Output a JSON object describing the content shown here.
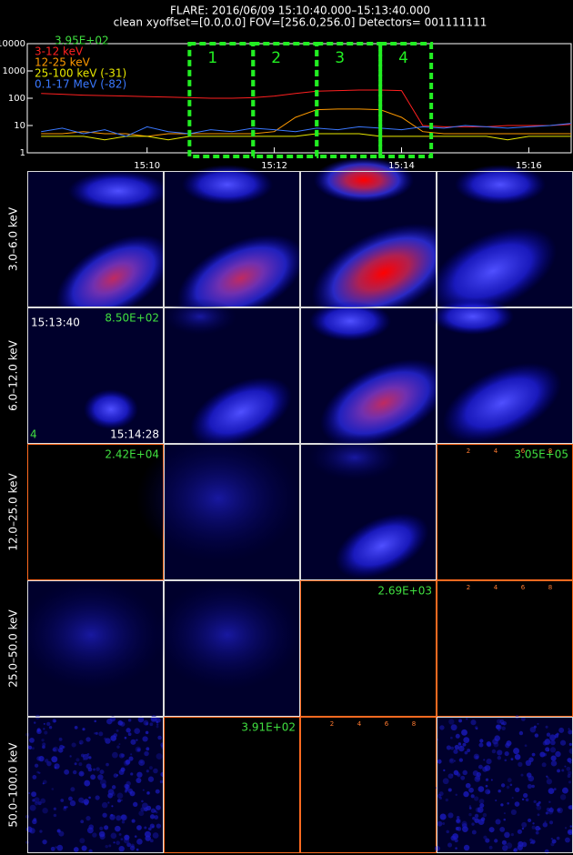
{
  "header": {
    "title": "FLARE: 2016/06/09 15:10:40.000–15:13:40.000",
    "subtitle": "clean    xyoffset=[0.0,0.0]    FOV=[256.0,256.0]    Detectors= 001111111"
  },
  "chart_data": {
    "type": "line",
    "log_y": true,
    "legend_title": "3.95E+02",
    "x": [
      "15:08:20",
      "15:08:40",
      "15:09:00",
      "15:09:20",
      "15:09:40",
      "15:10:00",
      "15:10:20",
      "15:10:40",
      "15:11:00",
      "15:11:20",
      "15:11:40",
      "15:12:00",
      "15:12:20",
      "15:12:40",
      "15:13:00",
      "15:13:20",
      "15:13:40",
      "15:14:00",
      "15:14:20",
      "15:14:40",
      "15:15:00",
      "15:15:20",
      "15:15:40",
      "15:16:00",
      "15:16:20",
      "15:16:40"
    ],
    "series": [
      {
        "name": "3-12 keV",
        "color": "#ff2020",
        "values": [
          150,
          140,
          130,
          125,
          120,
          115,
          110,
          105,
          100,
          100,
          105,
          120,
          150,
          180,
          190,
          200,
          200,
          190,
          10,
          9,
          9,
          9,
          10,
          10,
          10,
          11
        ]
      },
      {
        "name": "12-25 keV",
        "color": "#ff9a00",
        "values": [
          5,
          5,
          6,
          5,
          5,
          4,
          5,
          5,
          5,
          5,
          5,
          6,
          20,
          38,
          40,
          40,
          38,
          20,
          6,
          5,
          5,
          5,
          5,
          5,
          5,
          5
        ]
      },
      {
        "name": "25-100 keV (-31)",
        "color": "#e8e800",
        "values": [
          4,
          4,
          4,
          3,
          4,
          4,
          3,
          4,
          4,
          4,
          4,
          4,
          4,
          5,
          5,
          5,
          4,
          4,
          4,
          4,
          4,
          4,
          3,
          4,
          4,
          4
        ]
      },
      {
        "name": "0.1-17 MeV (-82)",
        "color": "#3a78ff",
        "values": [
          6,
          8,
          5,
          7,
          4,
          9,
          6,
          5,
          7,
          6,
          8,
          7,
          6,
          8,
          7,
          9,
          8,
          7,
          9,
          8,
          10,
          9,
          8,
          9,
          10,
          12
        ]
      }
    ],
    "xlim": [
      "15:08:07",
      "15:16:40"
    ],
    "xticks": [
      {
        "value": "15:10:00",
        "label": "15:10"
      },
      {
        "value": "15:12:00",
        "label": "15:12"
      },
      {
        "value": "15:14:00",
        "label": "15:14"
      },
      {
        "value": "15:16:00",
        "label": "15:16"
      }
    ],
    "ylim": [
      1,
      10000
    ],
    "yticks": [
      1,
      10,
      100,
      1000,
      10000
    ],
    "intervals": [
      {
        "label": "1",
        "start": "15:10:40",
        "end": "15:11:40"
      },
      {
        "label": "2",
        "start": "15:11:40",
        "end": "15:12:40"
      },
      {
        "label": "3",
        "start": "15:12:40",
        "end": "15:13:40"
      },
      {
        "label": "4",
        "start": "15:13:40",
        "end": "15:14:28"
      }
    ],
    "interval_color": "#22ee22"
  },
  "images": {
    "energy_bands": [
      "3.0–6.0 keV",
      "6.0–12.0 keV",
      "12.0–25.0 keV",
      "25.0–50.0 keV",
      "50.0–100.0 keV"
    ],
    "annotations": [
      {
        "text": "8.50E+02",
        "row": 1,
        "col": 0
      },
      {
        "text": "2.42E+04",
        "row": 2,
        "col": 0
      },
      {
        "text": "3.05E+05",
        "row": 2,
        "col": 3
      },
      {
        "text": "2.69E+03",
        "row": 3,
        "col": 2
      },
      {
        "text": "3.91E+02",
        "row": 4,
        "col": 1
      }
    ],
    "time_start": "15:13:40",
    "time_end": "15:14:28",
    "interval_index": "4",
    "panel_ticks": [
      "2",
      "4",
      "6",
      "8"
    ]
  }
}
